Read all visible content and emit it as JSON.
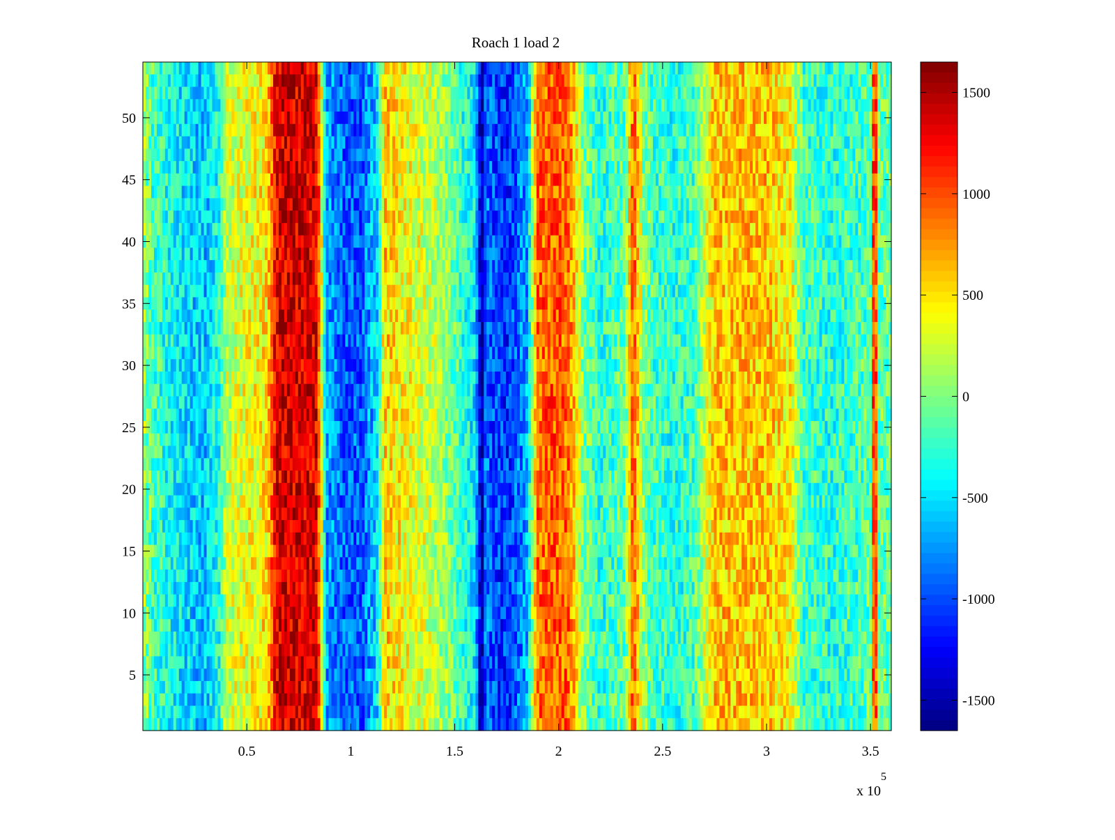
{
  "chart_data": {
    "type": "heatmap",
    "title": "Roach 1 load 2",
    "xlabel": "",
    "ylabel": "",
    "x_exponent_label": "x 10",
    "x_exponent_power": "5",
    "xlim": [
      0,
      360000
    ],
    "ylim": [
      0.5,
      54.5
    ],
    "x_ticks": [
      50000,
      100000,
      150000,
      200000,
      250000,
      300000,
      350000
    ],
    "x_tick_labels": [
      "0.5",
      "1",
      "1.5",
      "2",
      "2.5",
      "3",
      "3.5"
    ],
    "y_ticks": [
      5,
      10,
      15,
      20,
      25,
      30,
      35,
      40,
      45,
      50
    ],
    "y_tick_labels": [
      "5",
      "10",
      "15",
      "20",
      "25",
      "30",
      "35",
      "40",
      "45",
      "50"
    ],
    "rows": 54,
    "colormap": "jet",
    "clim": [
      -1650,
      1650
    ],
    "colorbar_ticks": [
      1500,
      1000,
      500,
      0,
      -500,
      -1000,
      -1500
    ],
    "colorbar_tick_labels": [
      "1500",
      "1000",
      "500",
      "0",
      "-500",
      "-1000",
      "-1500"
    ],
    "column_profile": {
      "x": [
        0,
        5000,
        20000,
        30000,
        37000,
        40000,
        50000,
        60000,
        64000,
        70000,
        80000,
        84000,
        88000,
        95000,
        105000,
        113000,
        116000,
        125000,
        140000,
        150000,
        160000,
        163000,
        165000,
        168000,
        175000,
        185000,
        190000,
        197000,
        205000,
        212000,
        220000,
        232000,
        236000,
        240000,
        245000,
        255000,
        265000,
        275000,
        285000,
        300000,
        312000,
        318000,
        330000,
        345000,
        350000,
        352000,
        354000,
        360000
      ],
      "value": [
        100,
        -200,
        -500,
        -600,
        -300,
        200,
        350,
        500,
        1300,
        1400,
        1350,
        1300,
        -700,
        -900,
        -950,
        -500,
        600,
        400,
        200,
        -100,
        -500,
        -1600,
        -800,
        -1000,
        -1100,
        -700,
        900,
        950,
        900,
        0,
        -300,
        -100,
        1000,
        100,
        -200,
        -300,
        -200,
        600,
        600,
        600,
        400,
        -200,
        -300,
        -200,
        -100,
        1500,
        -100,
        -100
      ]
    }
  }
}
